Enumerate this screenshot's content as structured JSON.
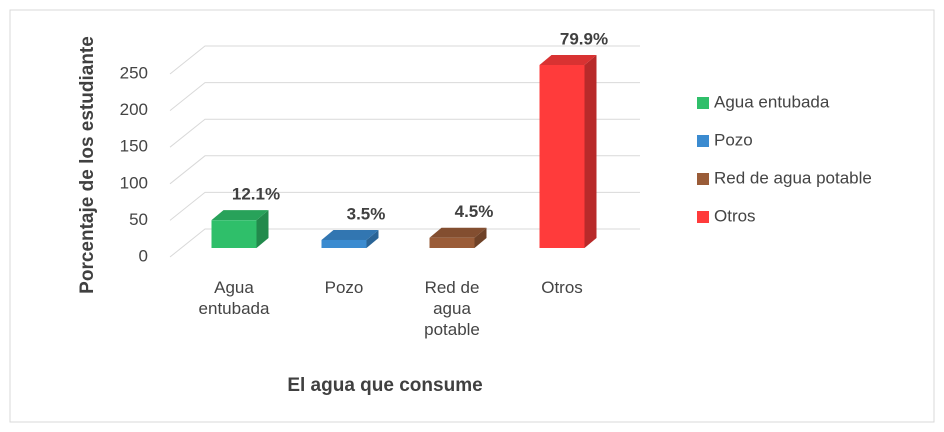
{
  "chart_data": {
    "type": "bar3d",
    "x_label": "El agua que consume",
    "y_label": "Porcentaje de los estudiante",
    "categories": [
      "Agua entubada",
      "Pozo",
      "Red de agua potable",
      "Otros"
    ],
    "series": [
      {
        "name": "Agua entubada",
        "color": "#2fbf6a",
        "values": [
          38,
          null,
          null,
          null
        ]
      },
      {
        "name": "Pozo",
        "color": "#3b8bd0",
        "values": [
          null,
          11,
          null,
          null
        ]
      },
      {
        "name": "Red de agua potable",
        "color": "#9a5c38",
        "values": [
          null,
          null,
          14,
          null
        ]
      },
      {
        "name": "Otros",
        "color": "#ff3b3b",
        "values": [
          null,
          null,
          null,
          250
        ]
      }
    ],
    "annotations": [
      "12.1%",
      "3.5%",
      "4.5%",
      "79.9%"
    ],
    "ylim": [
      0,
      250
    ],
    "yticks": [
      0,
      50,
      100,
      150,
      200,
      250
    ],
    "grid": true,
    "legend": "right"
  }
}
